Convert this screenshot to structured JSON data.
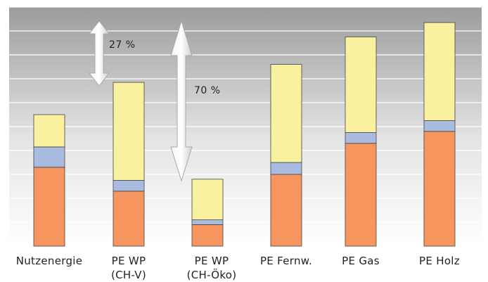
{
  "chart_data": {
    "type": "bar",
    "stacked": true,
    "categories": [
      [
        "Nutzenergie"
      ],
      [
        "PE WP",
        "(CH-V)"
      ],
      [
        "PE WP",
        "(CH-Öko)"
      ],
      [
        "PE Fernw."
      ],
      [
        "PE Gas"
      ],
      [
        "PE Holz"
      ]
    ],
    "series": [
      {
        "values": [
          3.3,
          2.3,
          0.9,
          3.0,
          4.3,
          4.8
        ],
        "color": "#f7955f"
      },
      {
        "values": [
          0.85,
          0.45,
          0.2,
          0.5,
          0.45,
          0.45
        ],
        "color": "#a9bce0"
      },
      {
        "values": [
          1.35,
          4.1,
          1.7,
          4.1,
          4.0,
          4.1
        ],
        "color": "#f9f0a0"
      }
    ],
    "ylim": [
      0,
      10
    ],
    "grid": true,
    "legend": "none",
    "annotations": [
      {
        "text": "27 %"
      },
      {
        "text": "70 %"
      }
    ]
  }
}
